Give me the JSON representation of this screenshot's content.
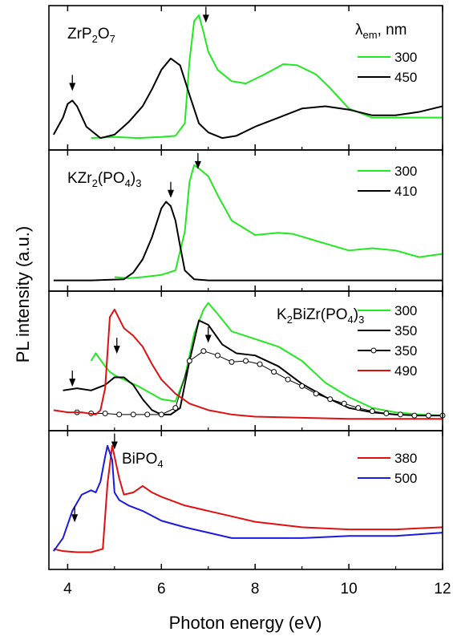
{
  "chart_data": {
    "type": "line",
    "xlabel": "Photon energy (eV)",
    "ylabel": "PL intensity (a.u.)",
    "xlim": [
      3.6,
      12
    ],
    "xticks": [
      "4",
      "6",
      "8",
      "10",
      "12"
    ],
    "grid": false,
    "legend_header": {
      "symbol": "λ",
      "sub": "em",
      "unit": ", nm"
    },
    "colors": {
      "green": "#22e822",
      "black": "#000000",
      "red": "#e01010",
      "blue": "#1a1ae0"
    },
    "panels": [
      {
        "label_parts": [
          {
            "t": "ZrP"
          },
          {
            "t": "2",
            "sub": true
          },
          {
            "t": "O"
          },
          {
            "t": "7",
            "sub": true
          }
        ],
        "legend_position": "top-right",
        "show_legend_header": true,
        "arrows": [
          {
            "x": 4.1,
            "y": 0.42
          },
          {
            "x": 6.95,
            "y": 1.02
          }
        ],
        "series": [
          {
            "name": "300",
            "color": "#22e822",
            "style": "line",
            "x": [
              4.5,
              5.0,
              5.5,
              6.0,
              6.3,
              6.5,
              6.6,
              6.7,
              6.8,
              6.9,
              7.0,
              7.2,
              7.5,
              7.8,
              8.2,
              8.6,
              8.9,
              9.3,
              9.6,
              10.0,
              10.5,
              11.0,
              11.5,
              12.0
            ],
            "y": [
              0.02,
              0.03,
              0.02,
              0.03,
              0.04,
              0.15,
              0.7,
              1.05,
              1.1,
              0.95,
              0.78,
              0.62,
              0.52,
              0.5,
              0.58,
              0.67,
              0.66,
              0.58,
              0.46,
              0.28,
              0.2,
              0.2,
              0.2,
              0.2
            ]
          },
          {
            "name": "450",
            "color": "#000000",
            "style": "line",
            "x": [
              3.7,
              3.9,
              4.0,
              4.1,
              4.2,
              4.4,
              4.7,
              5.0,
              5.3,
              5.6,
              5.8,
              6.0,
              6.2,
              6.4,
              6.6,
              6.8,
              7.0,
              7.3,
              7.6,
              8.0,
              8.5,
              9.0,
              9.5,
              10.0,
              10.5,
              11.0,
              11.5,
              12.0
            ],
            "y": [
              0.05,
              0.2,
              0.32,
              0.35,
              0.3,
              0.12,
              0.02,
              0.05,
              0.16,
              0.3,
              0.45,
              0.62,
              0.72,
              0.66,
              0.4,
              0.15,
              0.07,
              0.02,
              0.04,
              0.12,
              0.2,
              0.28,
              0.3,
              0.27,
              0.22,
              0.22,
              0.25,
              0.3
            ]
          }
        ]
      },
      {
        "label_parts": [
          {
            "t": "KZr"
          },
          {
            "t": "2",
            "sub": true
          },
          {
            "t": "(PO"
          },
          {
            "t": "4",
            "sub": true
          },
          {
            "t": ")"
          },
          {
            "t": "3",
            "sub": true
          }
        ],
        "legend_position": "top-right",
        "show_legend_header": false,
        "arrows": [
          {
            "x": 6.2,
            "y": 0.74
          },
          {
            "x": 6.78,
            "y": 1.0
          }
        ],
        "series": [
          {
            "name": "300",
            "color": "#22e822",
            "style": "line",
            "x": [
              5.0,
              5.3,
              5.6,
              6.0,
              6.3,
              6.5,
              6.6,
              6.7,
              6.8,
              7.0,
              7.2,
              7.5,
              8.0,
              8.5,
              8.8,
              9.2,
              9.6,
              10.0,
              10.5,
              11.0,
              11.5,
              12.0
            ],
            "y": [
              0.04,
              0.03,
              0.04,
              0.06,
              0.1,
              0.45,
              0.9,
              1.05,
              1.02,
              0.95,
              0.78,
              0.55,
              0.42,
              0.44,
              0.43,
              0.38,
              0.33,
              0.28,
              0.3,
              0.28,
              0.22,
              0.25
            ]
          },
          {
            "name": "410",
            "color": "#000000",
            "style": "line",
            "x": [
              3.7,
              4.5,
              5.2,
              5.4,
              5.6,
              5.8,
              6.0,
              6.1,
              6.2,
              6.3,
              6.4,
              6.5,
              6.7,
              7.0,
              8.0,
              9.0,
              10.0,
              11.0,
              12.0
            ],
            "y": [
              0.01,
              0.01,
              0.02,
              0.08,
              0.2,
              0.4,
              0.66,
              0.72,
              0.68,
              0.55,
              0.32,
              0.1,
              0.02,
              0.01,
              0.01,
              0.01,
              0.01,
              0.01,
              0.01
            ]
          }
        ]
      },
      {
        "label_parts": [
          {
            "t": "K"
          },
          {
            "t": "2",
            "sub": true
          },
          {
            "t": "BiZr(PO"
          },
          {
            "t": "4",
            "sub": true
          },
          {
            "t": ")"
          },
          {
            "t": "3",
            "sub": true
          }
        ],
        "legend_position": "top-right",
        "show_legend_header": false,
        "arrows": [
          {
            "x": 4.1,
            "y": 0.3
          },
          {
            "x": 5.05,
            "y": 0.6
          },
          {
            "x": 7.0,
            "y": 0.7
          }
        ],
        "series": [
          {
            "name": "300",
            "color": "#22e822",
            "style": "line",
            "x": [
              4.5,
              4.6,
              4.7,
              4.8,
              4.9,
              5.0,
              5.5,
              6.0,
              6.3,
              6.5,
              6.7,
              6.9,
              7.0,
              7.2,
              7.5,
              8.0,
              8.5,
              9.0,
              9.5,
              10.0,
              10.5,
              11.0,
              11.5,
              12.0
            ],
            "y": [
              0.55,
              0.62,
              0.56,
              0.5,
              0.45,
              0.42,
              0.32,
              0.2,
              0.18,
              0.4,
              0.8,
              1.02,
              1.08,
              0.98,
              0.82,
              0.75,
              0.68,
              0.55,
              0.35,
              0.22,
              0.12,
              0.08,
              0.06,
              0.05
            ]
          },
          {
            "name": "350",
            "color": "#000000",
            "style": "line",
            "x": [
              3.9,
              4.2,
              4.5,
              4.8,
              5.0,
              5.2,
              5.4,
              5.6,
              5.8,
              6.0,
              6.2,
              6.4,
              6.6,
              6.8,
              7.0,
              7.3,
              7.6,
              8.0,
              8.5,
              9.0,
              9.5,
              10.0,
              10.5,
              11.0,
              11.5,
              12.0
            ],
            "y": [
              0.28,
              0.3,
              0.28,
              0.33,
              0.4,
              0.4,
              0.33,
              0.2,
              0.1,
              0.06,
              0.06,
              0.12,
              0.55,
              0.92,
              0.88,
              0.7,
              0.62,
              0.6,
              0.5,
              0.34,
              0.22,
              0.12,
              0.08,
              0.06,
              0.05,
              0.05
            ]
          },
          {
            "name": "350",
            "color": "#000000",
            "style": "circles",
            "x": [
              4.2,
              4.5,
              4.8,
              5.1,
              5.4,
              5.7,
              6.0,
              6.3,
              6.6,
              6.9,
              7.2,
              7.5,
              7.8,
              8.1,
              8.4,
              8.7,
              9.0,
              9.3,
              9.6,
              9.9,
              10.2,
              10.5,
              10.8,
              11.1,
              11.4,
              11.7,
              12.0
            ],
            "y": [
              0.08,
              0.07,
              0.07,
              0.06,
              0.06,
              0.06,
              0.06,
              0.12,
              0.55,
              0.64,
              0.6,
              0.54,
              0.55,
              0.52,
              0.45,
              0.38,
              0.32,
              0.25,
              0.2,
              0.16,
              0.12,
              0.09,
              0.07,
              0.06,
              0.05,
              0.05,
              0.05
            ]
          },
          {
            "name": "490",
            "color": "#e01010",
            "style": "line",
            "x": [
              3.7,
              4.0,
              4.3,
              4.6,
              4.7,
              4.8,
              4.9,
              5.0,
              5.2,
              5.4,
              5.6,
              5.8,
              6.0,
              6.3,
              6.6,
              7.0,
              7.5,
              8.0,
              9.0,
              10.0,
              11.0,
              12.0
            ],
            "y": [
              0.1,
              0.08,
              0.08,
              0.06,
              0.1,
              0.3,
              0.95,
              1.02,
              0.85,
              0.78,
              0.68,
              0.52,
              0.38,
              0.25,
              0.16,
              0.1,
              0.06,
              0.04,
              0.03,
              0.02,
              0.02,
              0.02
            ]
          }
        ]
      },
      {
        "label_parts": [
          {
            "t": "BiPO"
          },
          {
            "t": "4",
            "sub": true
          }
        ],
        "legend_position": "top-right",
        "show_legend_header": false,
        "arrows": [
          {
            "x": 4.15,
            "y": 0.33
          },
          {
            "x": 5.0,
            "y": 1.0
          }
        ],
        "series": [
          {
            "name": "380",
            "color": "#e01010",
            "style": "line",
            "x": [
              3.7,
              3.9,
              4.2,
              4.5,
              4.75,
              4.85,
              4.95,
              5.1,
              5.2,
              5.4,
              5.6,
              5.8,
              6.0,
              6.5,
              7.0,
              7.5,
              8.0,
              9.0,
              10.0,
              11.0,
              12.0
            ],
            "y": [
              0.1,
              0.08,
              0.07,
              0.07,
              0.1,
              0.7,
              1.05,
              0.75,
              0.6,
              0.62,
              0.68,
              0.62,
              0.58,
              0.5,
              0.45,
              0.4,
              0.35,
              0.3,
              0.28,
              0.28,
              0.3
            ]
          },
          {
            "name": "500",
            "color": "#1a1ae0",
            "style": "line",
            "x": [
              3.7,
              3.9,
              4.1,
              4.3,
              4.5,
              4.6,
              4.7,
              4.8,
              4.85,
              4.95,
              5.0,
              5.1,
              5.3,
              5.6,
              6.0,
              6.5,
              7.0,
              7.5,
              8.0,
              9.0,
              10.0,
              11.0,
              12.0
            ],
            "y": [
              0.08,
              0.2,
              0.45,
              0.6,
              0.64,
              0.62,
              0.72,
              0.95,
              1.05,
              0.92,
              0.62,
              0.55,
              0.5,
              0.45,
              0.36,
              0.3,
              0.25,
              0.2,
              0.2,
              0.2,
              0.22,
              0.22,
              0.25
            ]
          }
        ]
      }
    ]
  }
}
